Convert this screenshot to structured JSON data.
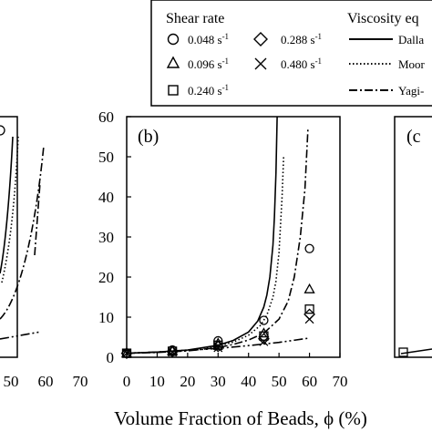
{
  "legend": {
    "shear_rate_title": "Shear rate",
    "viscosity_title": "Viscosity eq",
    "shear_rates": [
      {
        "label": "0.048 s",
        "sup": "-1",
        "marker": "circle"
      },
      {
        "label": "0.288 s",
        "sup": "-1",
        "marker": "diamond"
      },
      {
        "label": "0.096 s",
        "sup": "-1",
        "marker": "triangle"
      },
      {
        "label": "0.480 s",
        "sup": "-1",
        "marker": "cross"
      },
      {
        "label": "0.240 s",
        "sup": "-1",
        "marker": "square"
      }
    ],
    "equations": [
      {
        "label": "Dalla",
        "style": "solid"
      },
      {
        "label": "Moor",
        "style": "dotted"
      },
      {
        "label": "Yagi-",
        "style": "dashdot"
      }
    ]
  },
  "axis": {
    "xlabel": "Volume Fraction of Beads, ϕ (%)",
    "left_partial_ticks": [
      "50",
      "60",
      "70"
    ],
    "panel_c_label": "(c"
  },
  "chart_data": [
    {
      "panel": "b",
      "panel_label": "(b)",
      "type": "scatter",
      "xlim": [
        0,
        70
      ],
      "ylim": [
        0,
        60
      ],
      "xticks": [
        "0",
        "10",
        "20",
        "30",
        "40",
        "50",
        "60",
        "70"
      ],
      "yticks": [
        "0",
        "10",
        "20",
        "30",
        "40",
        "50",
        "60"
      ],
      "series": [
        {
          "marker": "circle",
          "x": [
            0,
            15,
            30,
            45,
            60
          ],
          "y": [
            1.0,
            1.8,
            4.1,
            9.2,
            27.1
          ]
        },
        {
          "marker": "triangle",
          "x": [
            0,
            15,
            30,
            45,
            60
          ],
          "y": [
            1.0,
            1.6,
            3.5,
            6.0,
            17.0
          ]
        },
        {
          "marker": "square",
          "x": [
            0,
            15,
            30,
            45,
            60
          ],
          "y": [
            1.0,
            1.5,
            3.0,
            5.3,
            12.0
          ]
        },
        {
          "marker": "diamond",
          "x": [
            0,
            15,
            30,
            45,
            60
          ],
          "y": [
            1.0,
            1.4,
            2.7,
            4.6,
            10.7
          ]
        },
        {
          "marker": "cross",
          "x": [
            0,
            15,
            30,
            45,
            60
          ],
          "y": [
            1.0,
            1.3,
            2.4,
            3.9,
            9.5
          ]
        }
      ],
      "curves": [
        {
          "style": "solid",
          "x": [
            0,
            10,
            20,
            30,
            35,
            40,
            43,
            45,
            46,
            47,
            48,
            48.5,
            49,
            49.4
          ],
          "y": [
            1.0,
            1.3,
            1.8,
            3.0,
            4.2,
            6.3,
            9.0,
            12.5,
            15.5,
            20.0,
            28.0,
            35.0,
            46.0,
            60.0
          ]
        },
        {
          "style": "dotted",
          "x": [
            0,
            10,
            20,
            30,
            35,
            40,
            44,
            46,
            48,
            49,
            50,
            51,
            51.5
          ],
          "y": [
            1.0,
            1.3,
            1.8,
            2.8,
            3.8,
            5.5,
            8.0,
            10.5,
            15.0,
            19.0,
            26.0,
            40.0,
            50.0
          ]
        },
        {
          "style": "dashdot",
          "x": [
            0,
            10,
            20,
            30,
            35,
            40,
            45,
            50,
            53,
            55,
            57,
            58.5,
            59.5
          ],
          "y": [
            1.0,
            1.2,
            1.6,
            2.4,
            3.2,
            4.3,
            6.0,
            9.5,
            14.0,
            20.0,
            30.0,
            42.0,
            57.0
          ]
        },
        {
          "style": "dashdotdot",
          "x": [
            0,
            10,
            20,
            30,
            40,
            50,
            60
          ],
          "y": [
            1.0,
            1.3,
            1.7,
            2.2,
            2.9,
            3.7,
            4.8
          ]
        }
      ]
    }
  ]
}
